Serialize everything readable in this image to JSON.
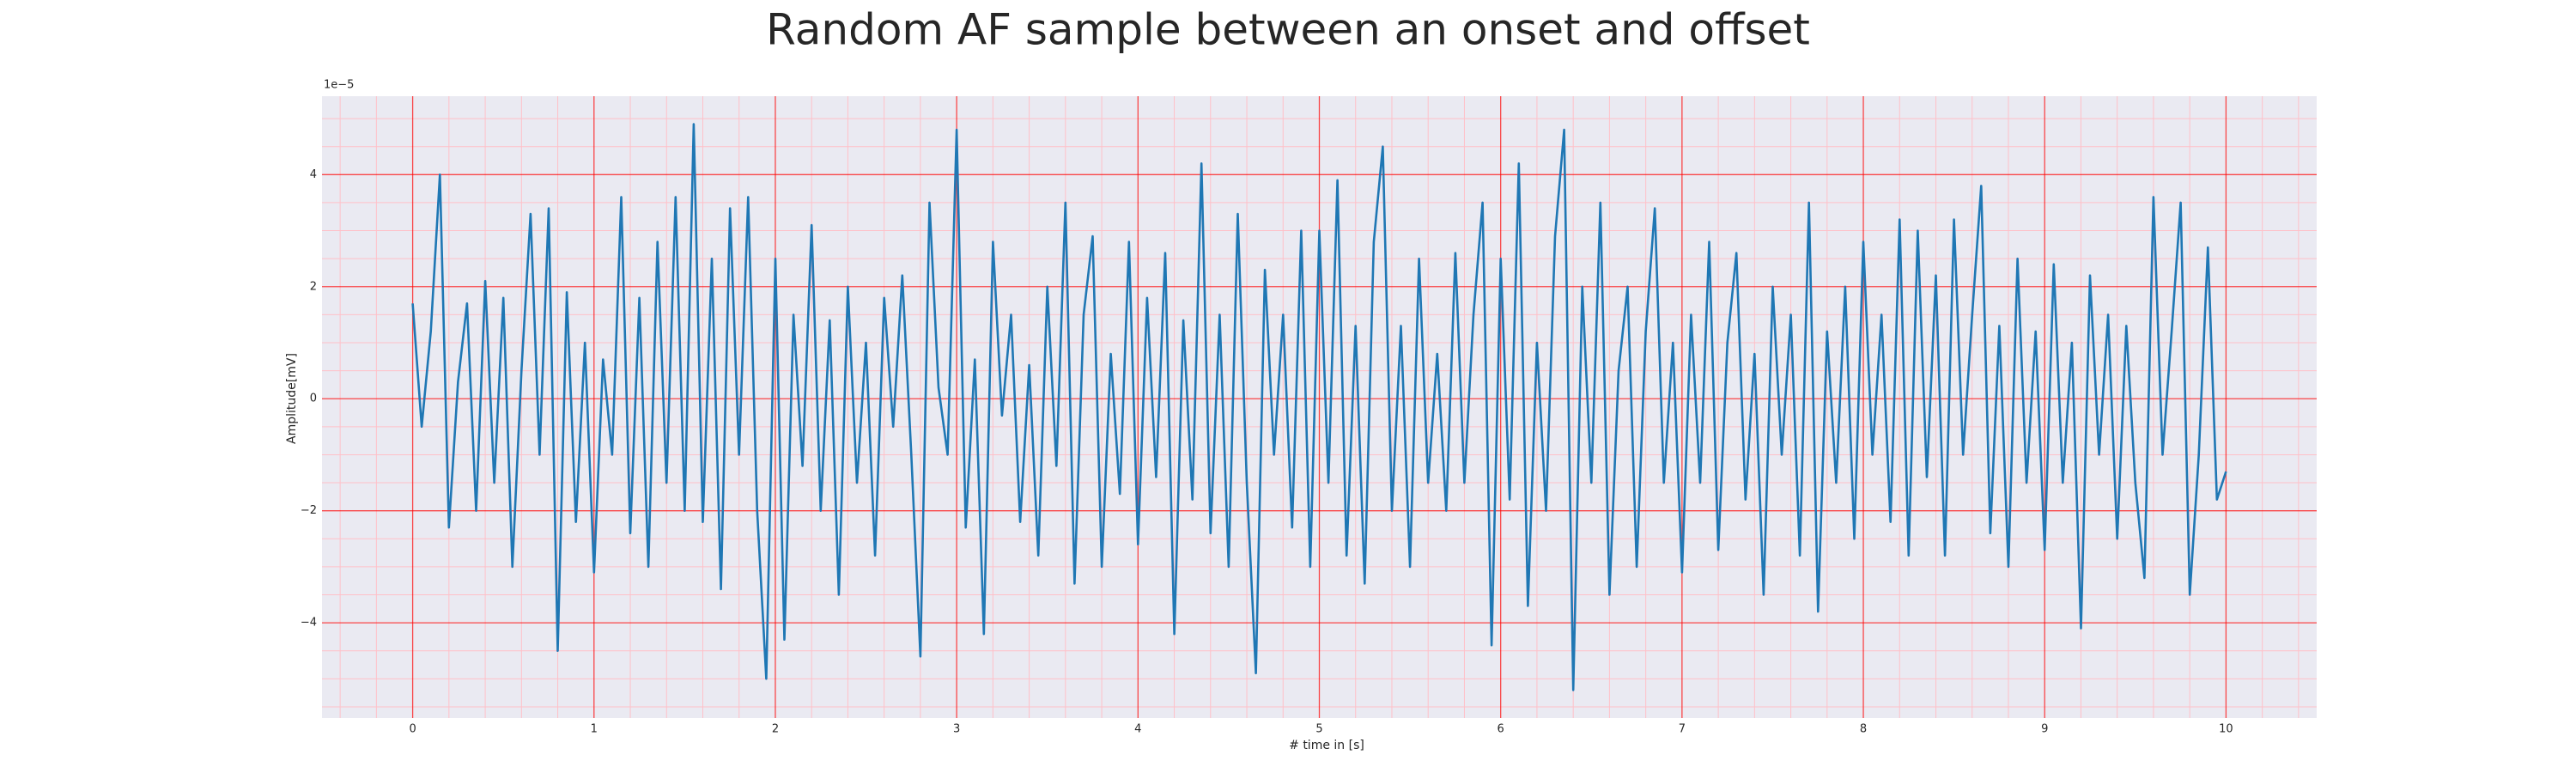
{
  "chart_data": {
    "type": "line",
    "title": "Random AF sample between an onset and offset",
    "xlabel": "# time in [s]",
    "ylabel": "Amplitude[mV]",
    "y_offset_label": "1e−5",
    "color": "#1f77b4",
    "grid": true,
    "grid_color": "#ff0000",
    "minor_grid_color": "#ffc0c8",
    "background": "#eaeaf2",
    "xlim": [
      -0.5,
      10.5
    ],
    "ylim": [
      -5.7,
      5.4
    ],
    "xticks": [
      0,
      1,
      2,
      3,
      4,
      5,
      6,
      7,
      8,
      9,
      10
    ],
    "yticks": [
      {
        "value": -4,
        "label": "−4"
      },
      {
        "value": -2,
        "label": "−2"
      },
      0,
      2,
      4
    ],
    "xminorticks": [
      -0.4,
      -0.2,
      0.2,
      0.4,
      0.6,
      0.8,
      1.2,
      1.4,
      1.6,
      1.8,
      2.2,
      2.4,
      2.6,
      2.8,
      3.2,
      3.4,
      3.6,
      3.8,
      4.2,
      4.4,
      4.6,
      4.8,
      5.2,
      5.4,
      5.6,
      5.8,
      6.2,
      6.4,
      6.6,
      6.8,
      7.2,
      7.4,
      7.6,
      7.8,
      8.2,
      8.4,
      8.6,
      8.8,
      9.2,
      9.4,
      9.6,
      9.8,
      10.2,
      10.4
    ],
    "yminorticks": [
      -5.5,
      -5,
      -4.5,
      -3.5,
      -3,
      -2.5,
      -1.5,
      -1,
      -0.5,
      0.5,
      1,
      1.5,
      2.5,
      3,
      3.5,
      4.5,
      5
    ],
    "x": [
      0,
      0.05,
      0.1,
      0.15,
      0.2,
      0.25,
      0.3,
      0.35,
      0.4,
      0.45,
      0.5,
      0.55,
      0.6,
      0.65,
      0.7,
      0.75,
      0.8,
      0.85,
      0.9,
      0.95,
      1,
      1.05,
      1.1,
      1.15,
      1.2,
      1.25,
      1.3,
      1.35,
      1.4,
      1.45,
      1.5,
      1.55,
      1.6,
      1.65,
      1.7,
      1.75,
      1.8,
      1.85,
      1.9,
      1.95,
      2,
      2.05,
      2.1,
      2.15,
      2.2,
      2.25,
      2.3,
      2.35,
      2.4,
      2.45,
      2.5,
      2.55,
      2.6,
      2.65,
      2.7,
      2.75,
      2.8,
      2.85,
      2.9,
      2.95,
      3,
      3.05,
      3.1,
      3.15,
      3.2,
      3.25,
      3.3,
      3.35,
      3.4,
      3.45,
      3.5,
      3.55,
      3.6,
      3.65,
      3.7,
      3.75,
      3.8,
      3.85,
      3.9,
      3.95,
      4,
      4.05,
      4.1,
      4.15,
      4.2,
      4.25,
      4.3,
      4.35,
      4.4,
      4.45,
      4.5,
      4.55,
      4.6,
      4.65,
      4.7,
      4.75,
      4.8,
      4.85,
      4.9,
      4.95,
      5,
      5.05,
      5.1,
      5.15,
      5.2,
      5.25,
      5.3,
      5.35,
      5.4,
      5.45,
      5.5,
      5.55,
      5.6,
      5.65,
      5.7,
      5.75,
      5.8,
      5.85,
      5.9,
      5.95,
      6,
      6.05,
      6.1,
      6.15,
      6.2,
      6.25,
      6.3,
      6.35,
      6.4,
      6.45,
      6.5,
      6.55,
      6.6,
      6.65,
      6.7,
      6.75,
      6.8,
      6.85,
      6.9,
      6.95,
      7,
      7.05,
      7.1,
      7.15,
      7.2,
      7.25,
      7.3,
      7.35,
      7.4,
      7.45,
      7.5,
      7.55,
      7.6,
      7.65,
      7.7,
      7.75,
      7.8,
      7.85,
      7.9,
      7.95,
      8,
      8.05,
      8.1,
      8.15,
      8.2,
      8.25,
      8.3,
      8.35,
      8.4,
      8.45,
      8.5,
      8.55,
      8.6,
      8.65,
      8.7,
      8.75,
      8.8,
      8.85,
      8.9,
      8.95,
      9,
      9.05,
      9.1,
      9.15,
      9.2,
      9.25,
      9.3,
      9.35,
      9.4,
      9.45,
      9.5,
      9.55,
      9.6,
      9.65,
      9.7,
      9.75,
      9.8,
      9.85,
      9.9,
      9.95,
      10
    ],
    "values": [
      1.7,
      -0.5,
      1.2,
      4.0,
      -2.3,
      0.3,
      1.7,
      -2.0,
      2.1,
      -1.5,
      1.8,
      -3.0,
      0.5,
      3.3,
      -1.0,
      3.4,
      -4.5,
      1.9,
      -2.2,
      1.0,
      -3.1,
      0.7,
      -1.0,
      3.6,
      -2.4,
      1.8,
      -3.0,
      2.8,
      -1.5,
      3.6,
      -2.0,
      4.9,
      -2.2,
      2.5,
      -3.4,
      3.4,
      -1.0,
      3.6,
      -2.0,
      -5.0,
      2.5,
      -4.3,
      1.5,
      -1.2,
      3.1,
      -2.0,
      1.4,
      -3.5,
      2.0,
      -1.5,
      1.0,
      -2.8,
      1.8,
      -0.5,
      2.2,
      -1.0,
      -4.6,
      3.5,
      0.2,
      -1.0,
      4.8,
      -2.3,
      0.7,
      -4.2,
      2.8,
      -0.3,
      1.5,
      -2.2,
      0.6,
      -2.8,
      2.0,
      -1.2,
      3.5,
      -3.3,
      1.5,
      2.9,
      -3.0,
      0.8,
      -1.7,
      2.8,
      -2.6,
      1.8,
      -1.4,
      2.6,
      -4.2,
      1.4,
      -1.8,
      4.2,
      -2.4,
      1.5,
      -3.0,
      3.3,
      -1.5,
      -4.9,
      2.3,
      -1.0,
      1.5,
      -2.3,
      3.0,
      -3.0,
      3.0,
      -1.5,
      3.9,
      -2.8,
      1.3,
      -3.3,
      2.8,
      4.5,
      -2.0,
      1.3,
      -3.0,
      2.5,
      -1.5,
      0.8,
      -2.0,
      2.6,
      -1.5,
      1.5,
      3.5,
      -4.4,
      2.5,
      -1.8,
      4.2,
      -3.7,
      1.0,
      -2.0,
      2.9,
      4.8,
      -5.2,
      2.0,
      -1.5,
      3.5,
      -3.5,
      0.5,
      2.0,
      -3.0,
      1.2,
      3.4,
      -1.5,
      1.0,
      -3.1,
      1.5,
      -1.5,
      2.8,
      -2.7,
      1.0,
      2.6,
      -1.8,
      0.8,
      -3.5,
      2.0,
      -1.0,
      1.5,
      -2.8,
      3.5,
      -3.8,
      1.2,
      -1.5,
      2.0,
      -2.5,
      2.8,
      -1.0,
      1.5,
      -2.2,
      3.2,
      -2.8,
      3.0,
      -1.4,
      2.2,
      -2.8,
      3.2,
      -1.0,
      1.5,
      3.8,
      -2.4,
      1.3,
      -3.0,
      2.5,
      -1.5,
      1.2,
      -2.7,
      2.4,
      -1.5,
      1.0,
      -4.1,
      2.2,
      -1.0,
      1.5,
      -2.5,
      1.3,
      -1.5,
      -3.2,
      3.6,
      -1.0,
      1.2,
      3.5,
      -3.5,
      -1.0,
      2.7,
      -1.8,
      -1.3
    ]
  }
}
